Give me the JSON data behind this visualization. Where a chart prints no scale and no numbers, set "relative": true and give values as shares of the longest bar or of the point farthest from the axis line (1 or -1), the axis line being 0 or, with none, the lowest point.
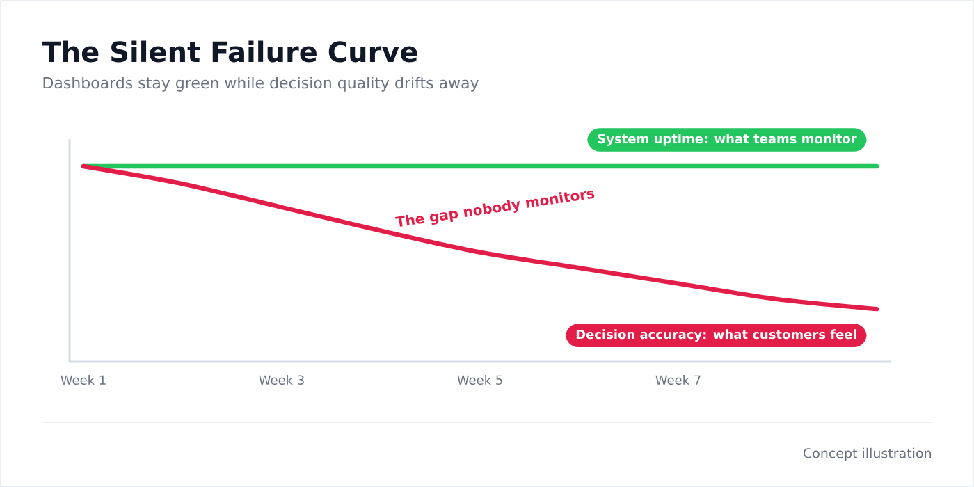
{
  "chart_data": {
    "type": "line",
    "title": "The Silent Failure Curve",
    "subtitle": "Dashboards stay green while decision quality drifts away",
    "categories": [
      "Week 1",
      null,
      "Week 3",
      null,
      "Week 5",
      null,
      "Week 7",
      null,
      null
    ],
    "relative": true,
    "series": [
      {
        "name": "System uptime: what teams monitor",
        "color": "#22c55e",
        "values": [
          1,
          1,
          1,
          1,
          1,
          1,
          1,
          1,
          1
        ]
      },
      {
        "name": "Decision accuracy: what customers feel",
        "color": "#e11d48",
        "values": [
          1,
          0.91,
          0.79,
          0.67,
          0.56,
          0.48,
          0.4,
          0.32,
          0.27
        ]
      }
    ],
    "annotations": [
      "The gap nobody monitors",
      "Concept illustration"
    ]
  }
}
